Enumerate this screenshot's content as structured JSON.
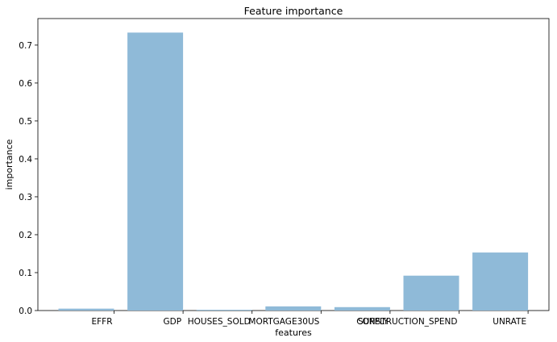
{
  "chart_data": {
    "type": "bar",
    "title": "Feature importance",
    "xlabel": "features",
    "ylabel": "importance",
    "categories": [
      "EFFR",
      "GDP",
      "HOUSES_SOLD",
      "MORTGAGE30US",
      "SUPPLY",
      "CONSTRUCTION_SPEND",
      "UNRATE"
    ],
    "values": [
      0.005,
      0.733,
      0.002,
      0.011,
      0.009,
      0.092,
      0.153
    ],
    "ylim": [
      0,
      0.77
    ],
    "yticks": [
      0.0,
      0.1,
      0.2,
      0.3,
      0.4,
      0.5,
      0.6,
      0.7
    ],
    "ytick_labels": [
      "0.0",
      "0.1",
      "0.2",
      "0.3",
      "0.4",
      "0.5",
      "0.6",
      "0.7"
    ],
    "grid": false,
    "bar_color": "#8fbad8"
  }
}
